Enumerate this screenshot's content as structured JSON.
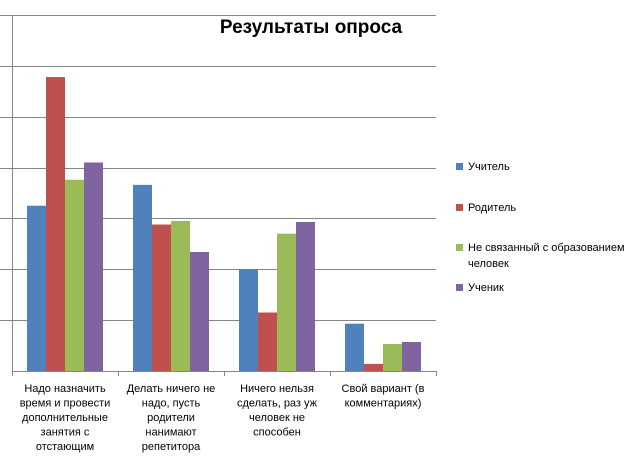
{
  "chart_data": {
    "type": "bar",
    "title": "Результаты опроса",
    "categories": [
      [
        "Надо назначить",
        "время и провести",
        "дополнительные",
        "занятия с",
        "отстающим"
      ],
      [
        "Делать ничего не",
        "надо, пусть",
        "родители",
        "нанимают",
        "репетитора"
      ],
      [
        "Ничего нельзя",
        "сделать, раз уж",
        "человек  не",
        "способен"
      ],
      [
        "Свой вариант (в",
        "комментариях)"
      ]
    ],
    "series": [
      {
        "name": "Учитель",
        "color": "#4F81BD",
        "values": [
          3.25,
          3.66,
          2.0,
          0.93
        ]
      },
      {
        "name": "Родитель",
        "color": "#C0504D",
        "values": [
          5.78,
          2.88,
          1.15,
          0.14
        ]
      },
      {
        "name": [
          "Не связанный с образованием",
          "человек"
        ],
        "color": "#9BBB59",
        "values": [
          3.76,
          2.95,
          2.7,
          0.53
        ]
      },
      {
        "name": "Ученик",
        "color": "#8064A2",
        "values": [
          4.1,
          2.34,
          2.93,
          0.57
        ]
      }
    ],
    "ylim": [
      0,
      7
    ],
    "grid": true,
    "legend": "right"
  }
}
